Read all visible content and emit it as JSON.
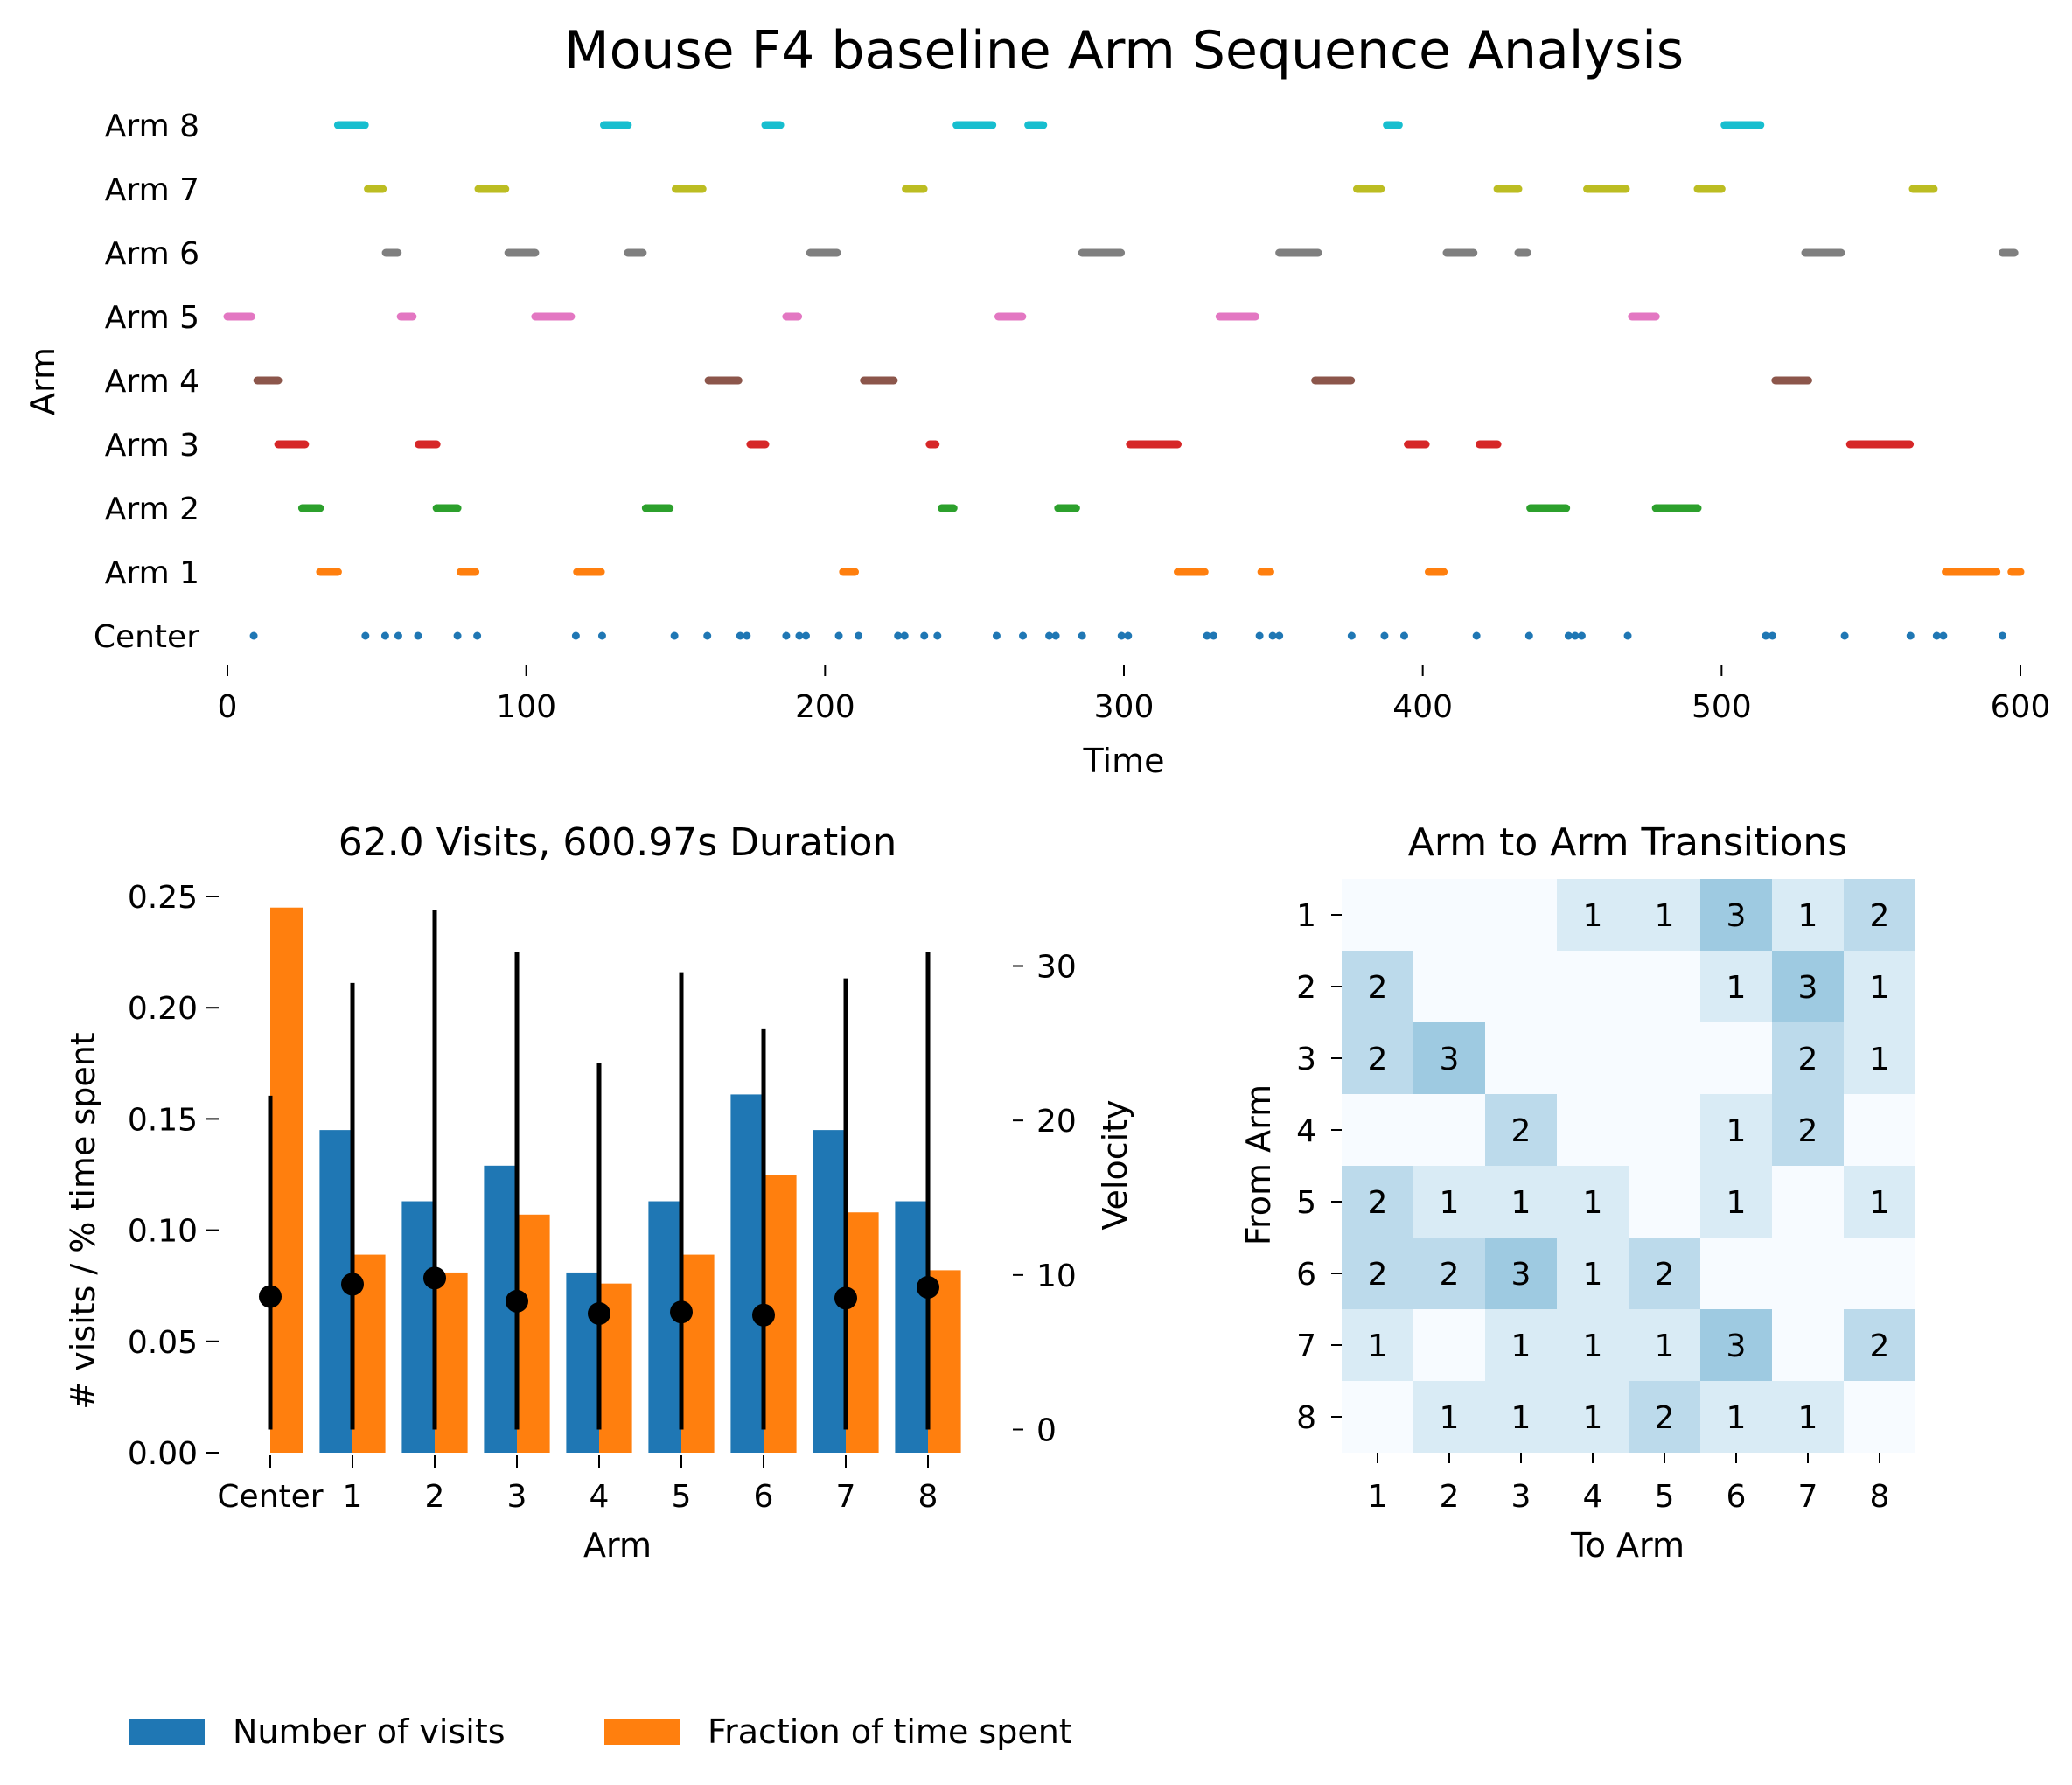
{
  "figure_title": "Mouse F4 baseline Arm Sequence Analysis",
  "colors": {
    "Center": "#1f77b4",
    "Arm 1": "#ff7f0e",
    "Arm 2": "#2ca02c",
    "Arm 3": "#d62728",
    "Arm 4": "#8c564b",
    "Arm 5": "#e377c2",
    "Arm 6": "#7f7f7f",
    "Arm 7": "#bcbd22",
    "Arm 8": "#17becf",
    "visits_bar": "#1f77b4",
    "time_bar": "#ff7f0e",
    "velocity": "#000000",
    "heatmap_low": "#f7fbff",
    "heatmap_high": "#9ecae1"
  },
  "chart_data": [
    {
      "type": "timeline",
      "title": "",
      "xlabel": "Time",
      "ylabel": "Arm",
      "xlim": [
        0,
        600
      ],
      "xticks": [
        0,
        100,
        200,
        300,
        400,
        500,
        600
      ],
      "rows": [
        "Center",
        "Arm 1",
        "Arm 2",
        "Arm 3",
        "Arm 4",
        "Arm 5",
        "Arm 6",
        "Arm 7",
        "Arm 8"
      ],
      "segments": {
        "Arm 8": [
          [
            37,
            46
          ],
          [
            126,
            134
          ],
          [
            180,
            185
          ],
          [
            244,
            256
          ],
          [
            268,
            273
          ],
          [
            388,
            392
          ],
          [
            501,
            513
          ]
        ],
        "Arm 7": [
          [
            47,
            52
          ],
          [
            84,
            93
          ],
          [
            150,
            159
          ],
          [
            227,
            233
          ],
          [
            378,
            386
          ],
          [
            425,
            432
          ],
          [
            455,
            468
          ],
          [
            492,
            500
          ],
          [
            564,
            571
          ]
        ],
        "Arm 6": [
          [
            53,
            57
          ],
          [
            94,
            103
          ],
          [
            134,
            139
          ],
          [
            195,
            204
          ],
          [
            286,
            299
          ],
          [
            352,
            365
          ],
          [
            408,
            417
          ],
          [
            432,
            435
          ],
          [
            528,
            540
          ],
          [
            594,
            598
          ]
        ],
        "Arm 5": [
          [
            0,
            8
          ],
          [
            58,
            62
          ],
          [
            103,
            115
          ],
          [
            187,
            191
          ],
          [
            258,
            266
          ],
          [
            332,
            344
          ],
          [
            470,
            478
          ]
        ],
        "Arm 4": [
          [
            10,
            17
          ],
          [
            161,
            171
          ],
          [
            213,
            223
          ],
          [
            364,
            376
          ],
          [
            518,
            529
          ]
        ],
        "Arm 3": [
          [
            17,
            26
          ],
          [
            64,
            70
          ],
          [
            175,
            180
          ],
          [
            235,
            237
          ],
          [
            302,
            318
          ],
          [
            395,
            401
          ],
          [
            419,
            425
          ],
          [
            543,
            563
          ]
        ],
        "Arm 2": [
          [
            25,
            31
          ],
          [
            70,
            77
          ],
          [
            140,
            148
          ],
          [
            239,
            243
          ],
          [
            278,
            284
          ],
          [
            436,
            448
          ],
          [
            478,
            492
          ]
        ],
        "Arm 1": [
          [
            31,
            37
          ],
          [
            78,
            83
          ],
          [
            117,
            125
          ],
          [
            206,
            210
          ],
          [
            318,
            327
          ],
          [
            346,
            349
          ],
          [
            402,
            407
          ],
          [
            575,
            592
          ],
          [
            597,
            600
          ]
        ]
      }
    },
    {
      "type": "bar",
      "title": "62.0 Visits, 600.97s Duration",
      "xlabel": "Arm",
      "ylabel": "# visits / % time spent",
      "ylabel_right": "Velocity",
      "categories": [
        "Center",
        "1",
        "2",
        "3",
        "4",
        "5",
        "6",
        "7",
        "8"
      ],
      "ylim": [
        0,
        0.25
      ],
      "yticks": [
        "0.00",
        "0.05",
        "0.10",
        "0.15",
        "0.20",
        "0.25"
      ],
      "ylim_right": [
        -1.5,
        34.5
      ],
      "yticks_right": [
        "0",
        "10",
        "20",
        "30"
      ],
      "series": [
        {
          "name": "Number of visits",
          "values": [
            0,
            0.145,
            0.113,
            0.129,
            0.081,
            0.113,
            0.161,
            0.145,
            0.113
          ]
        },
        {
          "name": "Fraction of time spent",
          "values": [
            0.245,
            0.089,
            0.081,
            0.107,
            0.076,
            0.089,
            0.125,
            0.108,
            0.082
          ]
        }
      ],
      "velocity_mean": [
        8.6,
        9.4,
        9.8,
        8.3,
        7.5,
        7.6,
        7.4,
        8.5,
        9.2
      ],
      "velocity_low": [
        0,
        0,
        0,
        0,
        0,
        0,
        0,
        0,
        0
      ],
      "velocity_high": [
        21.6,
        28.9,
        33.6,
        30.9,
        23.7,
        29.6,
        25.9,
        29.2,
        30.9
      ],
      "legend_placement": "bottom-left"
    },
    {
      "type": "heatmap",
      "title": "Arm to Arm Transitions",
      "xlabel": "To Arm",
      "ylabel": "From Arm",
      "x_labels": [
        "1",
        "2",
        "3",
        "4",
        "5",
        "6",
        "7",
        "8"
      ],
      "y_labels": [
        "1",
        "2",
        "3",
        "4",
        "5",
        "6",
        "7",
        "8"
      ],
      "matrix": [
        [
          0,
          0,
          0,
          1,
          1,
          3,
          1,
          2
        ],
        [
          2,
          0,
          0,
          0,
          0,
          1,
          3,
          1
        ],
        [
          2,
          3,
          0,
          0,
          0,
          0,
          2,
          1
        ],
        [
          0,
          0,
          2,
          0,
          0,
          1,
          2,
          0
        ],
        [
          2,
          1,
          1,
          1,
          0,
          1,
          0,
          1
        ],
        [
          2,
          2,
          3,
          1,
          2,
          0,
          0,
          0
        ],
        [
          1,
          0,
          1,
          1,
          1,
          3,
          0,
          2
        ],
        [
          0,
          1,
          1,
          1,
          2,
          1,
          1,
          0
        ]
      ]
    }
  ]
}
